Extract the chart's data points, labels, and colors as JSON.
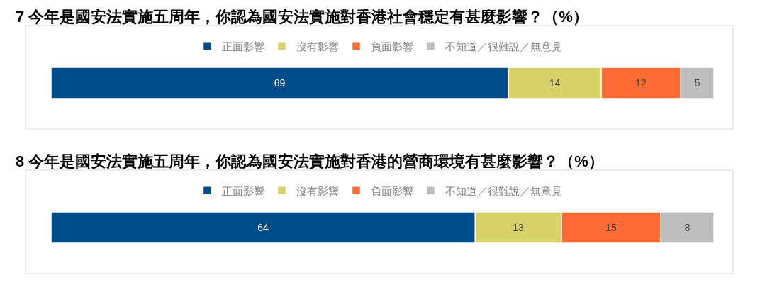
{
  "chart_data": [
    {
      "type": "bar",
      "orientation": "horizontal",
      "stacked": true,
      "title": "7 今年是國安法實施五周年，你認為國安法實施對香港社會穩定有甚麼影響？（%）",
      "categories": [
        null
      ],
      "series": [
        {
          "name": "正面影響",
          "color": "#004c89",
          "values": [
            69
          ]
        },
        {
          "name": "沒有影響",
          "color": "#d8d26a",
          "values": [
            14
          ]
        },
        {
          "name": "負面影響",
          "color": "#ff6b35",
          "values": [
            12
          ]
        },
        {
          "name": "不知道／很難說／無意見",
          "color": "#bdbdbd",
          "values": [
            5
          ]
        }
      ],
      "data_labels": true,
      "legend": "top",
      "tick_labels": false
    },
    {
      "type": "bar",
      "orientation": "horizontal",
      "stacked": true,
      "title": "8 今年是國安法實施五周年，你認為國安法實施對香港的營商環境有甚麼影響？（%）",
      "categories": [
        null
      ],
      "series": [
        {
          "name": "正面影響",
          "color": "#004c89",
          "values": [
            64
          ]
        },
        {
          "name": "沒有影響",
          "color": "#d8d26a",
          "values": [
            13
          ]
        },
        {
          "name": "負面影響",
          "color": "#ff6b35",
          "values": [
            15
          ]
        },
        {
          "name": "不知道／很難說／無意見",
          "color": "#bdbdbd",
          "values": [
            8
          ]
        }
      ],
      "data_labels": true,
      "legend": "top",
      "tick_labels": false
    }
  ]
}
